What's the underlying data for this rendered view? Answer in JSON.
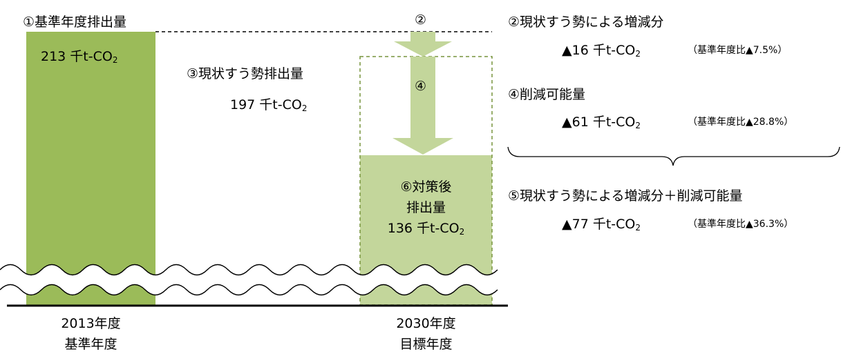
{
  "chart_data": {
    "type": "bar",
    "categories": [
      "2013年度",
      "2030年度"
    ],
    "category_sublabels": [
      "基準年度",
      "目標年度"
    ],
    "unit": "千t-CO",
    "unit_sub": "2",
    "bars": [
      {
        "label": "①基準年度排出量",
        "value": 213,
        "color": "#9BBB59"
      },
      {
        "label": "③現状すう勢排出量",
        "value": 197
      },
      {
        "label": "⑥対策後排出量",
        "value": 136,
        "color": "#C3D69B"
      }
    ],
    "step_markers": {
      "trend_change": "②",
      "reduction": "④"
    }
  },
  "labels": {
    "base_title": "①基準年度排出量",
    "base_value": "213 千t-CO",
    "trend_title": "③現状すう勢排出量",
    "trend_value": "197 千t-CO",
    "marker2": "②",
    "marker4": "④",
    "after_line1": "⑥対策後",
    "after_line2": "排出量",
    "after_line3": "136 千t-CO",
    "cat1_year": "2013年度",
    "cat1_sub": "基準年度",
    "cat2_year": "2030年度",
    "cat2_sub": "目標年度",
    "sub2": "2"
  },
  "summary": {
    "item2_title": "②現状すう勢による増減分",
    "item2_value": "▲16 千t-CO",
    "item2_ratio": "（基準年度比▲7.5%）",
    "item4_title": "④削減可能量",
    "item4_value": "▲61 千t-CO",
    "item4_ratio": "（基準年度比▲28.8%）",
    "item5_title": "⑤現状すう勢による増減分＋削減可能量",
    "item5_value": "▲77 千t-CO",
    "item5_ratio": "（基準年度比▲36.3%）"
  },
  "colors": {
    "base_bar": "#9BBB59",
    "after_bar": "#C3D69B",
    "arrow": "#C3D69B",
    "dashed_line": "#000000",
    "dashed_box": "#77933C"
  }
}
